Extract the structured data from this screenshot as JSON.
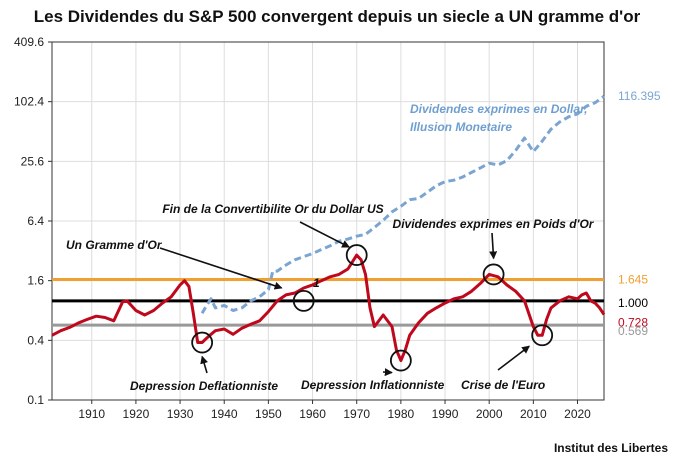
{
  "chart_data": {
    "type": "line",
    "title": "Les Dividendes du S&P 500 convergent depuis un siecle a UN gramme d'or",
    "source": "Institut des Libertes",
    "y_scale": "log2",
    "ylim": [
      0.1,
      409.6
    ],
    "xlim": [
      1901,
      2026
    ],
    "y_ticks": [
      "0.1",
      "0.4",
      "1.6",
      "6.4",
      "25.6",
      "102.4",
      "409.6"
    ],
    "x_ticks": [
      "1910",
      "1920",
      "1930",
      "1940",
      "1950",
      "1960",
      "1970",
      "1980",
      "1990",
      "2000",
      "2010",
      "2020"
    ],
    "grid": true,
    "series": [
      {
        "name": "Dividendes exprimes en Dollar, Illusion Monetaire",
        "color": "#7aa5d2",
        "dashed": true,
        "end_label": "116.395",
        "points": [
          [
            1935,
            0.75
          ],
          [
            1936,
            0.9
          ],
          [
            1937,
            1.05
          ],
          [
            1938,
            0.85
          ],
          [
            1940,
            0.9
          ],
          [
            1942,
            0.8
          ],
          [
            1944,
            0.85
          ],
          [
            1946,
            1.0
          ],
          [
            1948,
            1.1
          ],
          [
            1950,
            1.3
          ],
          [
            1951,
            2.0
          ],
          [
            1952,
            2.0
          ],
          [
            1954,
            2.3
          ],
          [
            1956,
            2.6
          ],
          [
            1958,
            2.8
          ],
          [
            1960,
            3.0
          ],
          [
            1962,
            3.3
          ],
          [
            1964,
            3.6
          ],
          [
            1966,
            4.0
          ],
          [
            1968,
            4.2
          ],
          [
            1970,
            4.5
          ],
          [
            1972,
            4.7
          ],
          [
            1974,
            5.5
          ],
          [
            1976,
            6.5
          ],
          [
            1978,
            7.9
          ],
          [
            1980,
            9.0
          ],
          [
            1982,
            10.5
          ],
          [
            1984,
            10.8
          ],
          [
            1986,
            12.5
          ],
          [
            1988,
            14.5
          ],
          [
            1990,
            16.0
          ],
          [
            1992,
            16.5
          ],
          [
            1994,
            17.8
          ],
          [
            1996,
            19.8
          ],
          [
            1998,
            22.0
          ],
          [
            2000,
            24.5
          ],
          [
            2002,
            23.5
          ],
          [
            2004,
            26.0
          ],
          [
            2006,
            33.0
          ],
          [
            2008,
            44.0
          ],
          [
            2010,
            32.0
          ],
          [
            2012,
            41.0
          ],
          [
            2014,
            54.0
          ],
          [
            2016,
            64.0
          ],
          [
            2018,
            72.0
          ],
          [
            2020,
            77.0
          ],
          [
            2022,
            92.0
          ],
          [
            2024,
            100.0
          ],
          [
            2026,
            116.395
          ]
        ]
      },
      {
        "name": "Dividendes exprimes en Poids d'Or",
        "color": "#c0081c",
        "dashed": false,
        "end_label": "0.728",
        "points": [
          [
            1901,
            0.45
          ],
          [
            1903,
            0.5
          ],
          [
            1905,
            0.54
          ],
          [
            1907,
            0.6
          ],
          [
            1909,
            0.65
          ],
          [
            1911,
            0.7
          ],
          [
            1913,
            0.68
          ],
          [
            1915,
            0.63
          ],
          [
            1917,
            0.98
          ],
          [
            1918,
            1.0
          ],
          [
            1920,
            0.8
          ],
          [
            1922,
            0.72
          ],
          [
            1924,
            0.8
          ],
          [
            1926,
            0.95
          ],
          [
            1928,
            1.1
          ],
          [
            1930,
            1.45
          ],
          [
            1931,
            1.6
          ],
          [
            1932,
            1.4
          ],
          [
            1933,
            0.75
          ],
          [
            1934,
            0.38
          ],
          [
            1935,
            0.38
          ],
          [
            1936,
            0.42
          ],
          [
            1937,
            0.46
          ],
          [
            1938,
            0.5
          ],
          [
            1940,
            0.52
          ],
          [
            1942,
            0.46
          ],
          [
            1944,
            0.53
          ],
          [
            1946,
            0.58
          ],
          [
            1948,
            0.63
          ],
          [
            1950,
            0.78
          ],
          [
            1952,
            1.0
          ],
          [
            1954,
            1.15
          ],
          [
            1956,
            1.2
          ],
          [
            1958,
            1.35
          ],
          [
            1960,
            1.45
          ],
          [
            1962,
            1.6
          ],
          [
            1964,
            1.75
          ],
          [
            1966,
            1.85
          ],
          [
            1968,
            2.1
          ],
          [
            1970,
            2.9
          ],
          [
            1971,
            2.6
          ],
          [
            1972,
            1.85
          ],
          [
            1973,
            0.85
          ],
          [
            1974,
            0.55
          ],
          [
            1976,
            0.72
          ],
          [
            1978,
            0.55
          ],
          [
            1979,
            0.32
          ],
          [
            1980,
            0.25
          ],
          [
            1981,
            0.32
          ],
          [
            1982,
            0.45
          ],
          [
            1984,
            0.6
          ],
          [
            1986,
            0.75
          ],
          [
            1988,
            0.85
          ],
          [
            1990,
            0.95
          ],
          [
            1992,
            1.05
          ],
          [
            1994,
            1.1
          ],
          [
            1996,
            1.25
          ],
          [
            1998,
            1.5
          ],
          [
            2000,
            1.85
          ],
          [
            2002,
            1.75
          ],
          [
            2004,
            1.45
          ],
          [
            2006,
            1.25
          ],
          [
            2008,
            1.0
          ],
          [
            2010,
            0.55
          ],
          [
            2011,
            0.45
          ],
          [
            2012,
            0.45
          ],
          [
            2013,
            0.65
          ],
          [
            2014,
            0.85
          ],
          [
            2016,
            1.0
          ],
          [
            2018,
            1.1
          ],
          [
            2020,
            1.05
          ],
          [
            2021,
            1.15
          ],
          [
            2022,
            1.2
          ],
          [
            2023,
            1.0
          ],
          [
            2024,
            0.95
          ],
          [
            2025,
            0.85
          ],
          [
            2026,
            0.728
          ]
        ]
      }
    ],
    "reference_lines": [
      {
        "name": "",
        "value": 1.645,
        "label": "1.645",
        "color": "#f0a030"
      },
      {
        "name": "Un Gramme d'Or",
        "value": 1.0,
        "label": "1.000",
        "color": "#000000"
      },
      {
        "name": "",
        "value": 0.569,
        "label": "0.569",
        "color": "#999999"
      }
    ],
    "inline_label": "1",
    "annotations": [
      {
        "text": "Fin de la Convertibilite Or du Dollar US",
        "x": 1971,
        "y": 2.9
      },
      {
        "text": "Un Gramme d'Or",
        "x": 1958,
        "y": 1.0
      },
      {
        "text": "Dividendes exprimes en Poids d'Or",
        "x": 2001,
        "y": 1.85
      },
      {
        "text": "Depression Deflationniste",
        "x": 1935,
        "y": 0.38
      },
      {
        "text": "Depression Inflationniste",
        "x": 1980,
        "y": 0.25
      },
      {
        "text": "Crise de l'Euro",
        "x": 2012,
        "y": 0.45
      }
    ],
    "circled_points": [
      [
        1935,
        0.38
      ],
      [
        1958,
        1.0
      ],
      [
        1970,
        2.9
      ],
      [
        1980,
        0.25
      ],
      [
        2001,
        1.85
      ],
      [
        2012,
        0.45
      ]
    ]
  }
}
